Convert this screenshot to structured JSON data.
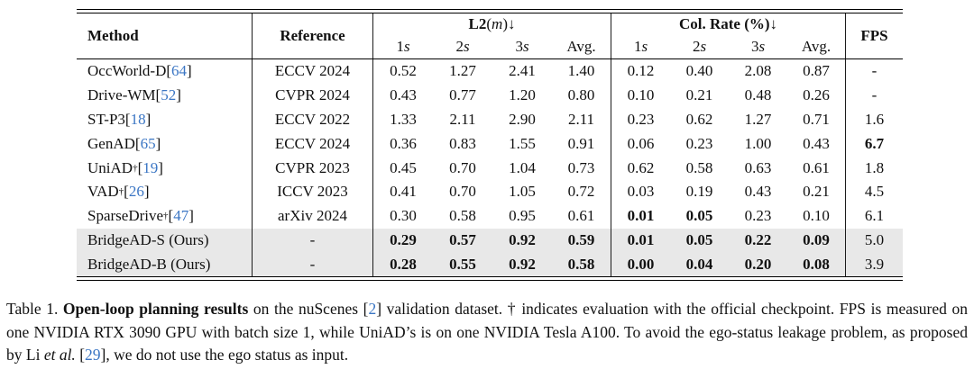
{
  "colors": {
    "cite_blue": "#3b76c4",
    "row_shade": "#e8e8e8"
  },
  "table": {
    "headers": {
      "method": "Method",
      "reference": "Reference",
      "fps": "FPS",
      "l2": {
        "label": "L2",
        "paren_open": " (",
        "var": "m",
        "paren_close": ") ",
        "arrow": "↓"
      },
      "col_rate": {
        "label": "Col. Rate (%)",
        "arrow": " ↓"
      },
      "sub": [
        {
          "n": "1",
          "s": "s"
        },
        {
          "n": "2",
          "s": "s"
        },
        {
          "n": "3",
          "s": "s"
        },
        {
          "n": "Avg.",
          "s": ""
        },
        {
          "n": "1",
          "s": "s"
        },
        {
          "n": "2",
          "s": "s"
        },
        {
          "n": "3",
          "s": "s"
        },
        {
          "n": "Avg.",
          "s": ""
        }
      ]
    },
    "rows": [
      {
        "method": "OccWorld-D",
        "sup": "",
        "cb_open": " [",
        "cite": "64",
        "cb_close": "]",
        "ref": "ECCV 2024",
        "l2": [
          "0.52",
          "1.27",
          "2.41",
          "1.40"
        ],
        "cr": [
          "0.12",
          "0.40",
          "2.08",
          "0.87"
        ],
        "fps": "-"
      },
      {
        "method": "Drive-WM",
        "sup": "",
        "cb_open": " [",
        "cite": "52",
        "cb_close": "]",
        "ref": "CVPR 2024",
        "l2": [
          "0.43",
          "0.77",
          "1.20",
          "0.80"
        ],
        "cr": [
          "0.10",
          "0.21",
          "0.48",
          "0.26"
        ],
        "fps": "-"
      },
      {
        "method": "ST-P3",
        "sup": "",
        "cb_open": " [",
        "cite": "18",
        "cb_close": "]",
        "ref": "ECCV 2022",
        "l2": [
          "1.33",
          "2.11",
          "2.90",
          "2.11"
        ],
        "cr": [
          "0.23",
          "0.62",
          "1.27",
          "0.71"
        ],
        "fps": "1.6"
      },
      {
        "method": "GenAD",
        "sup": "",
        "cb_open": " [",
        "cite": "65",
        "cb_close": "]",
        "ref": "ECCV 2024",
        "l2": [
          "0.36",
          "0.83",
          "1.55",
          "0.91"
        ],
        "cr": [
          "0.06",
          "0.23",
          "1.00",
          "0.43"
        ],
        "fps": "6.7"
      },
      {
        "method": "UniAD",
        "sup": "†",
        "cb_open": " [",
        "cite": "19",
        "cb_close": "]",
        "ref": "CVPR 2023",
        "l2": [
          "0.45",
          "0.70",
          "1.04",
          "0.73"
        ],
        "cr": [
          "0.62",
          "0.58",
          "0.63",
          "0.61"
        ],
        "fps": "1.8"
      },
      {
        "method": "VAD",
        "sup": "†",
        "cb_open": " [",
        "cite": "26",
        "cb_close": "]",
        "ref": "ICCV 2023",
        "l2": [
          "0.41",
          "0.70",
          "1.05",
          "0.72"
        ],
        "cr": [
          "0.03",
          "0.19",
          "0.43",
          "0.21"
        ],
        "fps": "4.5"
      },
      {
        "method": "SparseDrive",
        "sup": "†",
        "cb_open": " [",
        "cite": "47",
        "cb_close": "]",
        "ref": "arXiv 2024",
        "l2": [
          "0.30",
          "0.58",
          "0.95",
          "0.61"
        ],
        "cr": [
          "0.01",
          "0.05",
          "0.23",
          "0.10"
        ],
        "fps": "6.1"
      },
      {
        "method": "BridgeAD-S (Ours)",
        "sup": "",
        "cb_open": "",
        "cite": "",
        "cb_close": "",
        "ref": "-",
        "l2": [
          "0.29",
          "0.57",
          "0.92",
          "0.59"
        ],
        "cr": [
          "0.01",
          "0.05",
          "0.22",
          "0.09"
        ],
        "fps": "5.0"
      },
      {
        "method": "BridgeAD-B (Ours)",
        "sup": "",
        "cb_open": "",
        "cite": "",
        "cb_close": "",
        "ref": "-",
        "l2": [
          "0.28",
          "0.55",
          "0.92",
          "0.58"
        ],
        "cr": [
          "0.00",
          "0.04",
          "0.20",
          "0.08"
        ],
        "fps": "3.9"
      }
    ]
  },
  "caption": {
    "label": "Table 1. ",
    "bold": "Open-loop planning results",
    "part1": " on the nuScenes [",
    "cite1": "2",
    "part2": "] validation dataset. † indicates evaluation with the official checkpoint. FPS is measured on one NVIDIA RTX 3090 GPU with batch size 1, while UniAD’s is on one NVIDIA Tesla A100. To avoid the ego-status leakage problem, as proposed by Li ",
    "etal": "et al.",
    "part3": " [",
    "cite2": "29",
    "part4": "], we do not use the ego status as input."
  }
}
